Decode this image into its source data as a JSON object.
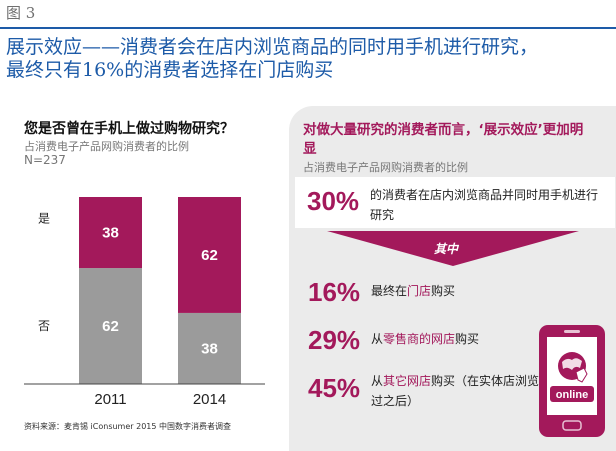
{
  "figure_label": "图 3",
  "headline_line1": "展示效应——消费者会在店内浏览商品的同时用手机进行研究，",
  "headline_line2": "最终只有16%的消费者选择在门店购买",
  "left": {
    "title": "您是否曾在手机上做过购物研究？",
    "subtitle": "占消费电子产品网购消费者的比例",
    "n": "N=237"
  },
  "chart_data": {
    "type": "bar",
    "stacked": true,
    "categories": [
      "2011",
      "2014"
    ],
    "series": [
      {
        "name": "是",
        "values": [
          38,
          62
        ],
        "color": "#a3195b"
      },
      {
        "name": "否",
        "values": [
          62,
          38
        ],
        "color": "#9b9b9b"
      }
    ],
    "ylim": [
      0,
      100
    ],
    "title": "您是否曾在手机上做过购物研究？",
    "xlabel": "",
    "ylabel": ""
  },
  "source": "资料来源：麦肯锡 iConsumer 2015 中国数字消费者调查",
  "panel": {
    "title": "对做大量研究的消费者而言，‘展示效应’更加明显",
    "subtitle": "占消费电子产品网购消费者的比例",
    "main_pct": "30%",
    "main_text": "的消费者在店内浏览商品并同时用手机进行研究",
    "arrow_label": "其中",
    "items": [
      {
        "pct": "16%",
        "pre": "最终在",
        "hl": "门店",
        "post": "购买"
      },
      {
        "pct": "29%",
        "pre": "从",
        "hl": "零售商的网店",
        "post": "购买"
      },
      {
        "pct": "45%",
        "pre": "从",
        "hl": "其它网店",
        "post": "购买（在实体店浏览过之后）"
      }
    ],
    "phone_label": "online"
  },
  "colors": {
    "accent": "#a3195b",
    "gray_bar": "#9b9b9b",
    "title_blue": "#1d5ba8",
    "panel_bg": "#ebebeb"
  }
}
